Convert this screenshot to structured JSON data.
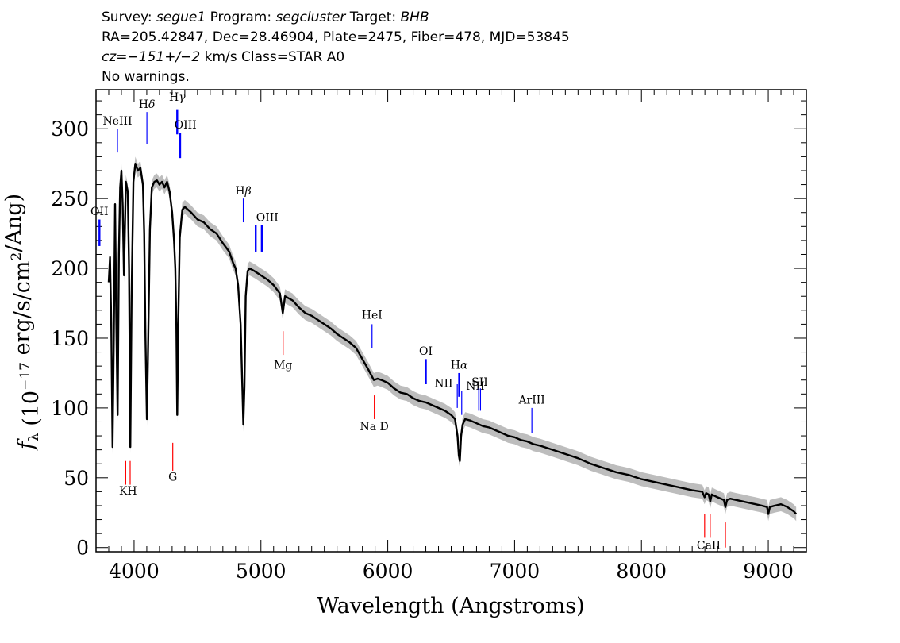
{
  "header": {
    "line1": {
      "survey_label": "Survey: ",
      "survey": "segue1",
      "program_label": " Program: ",
      "program": "segcluster",
      "target_label": " Target: ",
      "target": "BHB"
    },
    "line2": "RA=205.42847, Dec=28.46904, Plate=2475, Fiber=478, MJD=53845",
    "line3": {
      "cz": "cz=−151+/−2",
      "rest": " km/s Class=STAR A0"
    },
    "line4": "No warnings."
  },
  "chart_data": {
    "type": "line",
    "xlabel": "Wavelength (Angstroms)",
    "ylabel": "f_λ (10^-17 erg/s/cm^2/Ang)",
    "xlim": [
      3700,
      9300
    ],
    "ylim": [
      -3,
      328
    ],
    "xticks": [
      4000,
      5000,
      6000,
      7000,
      8000,
      9000
    ],
    "yticks": [
      0,
      50,
      100,
      150,
      200,
      250,
      300
    ],
    "series": [
      {
        "color": "#000000",
        "points": [
          [
            3800,
            190
          ],
          [
            3810,
            208
          ],
          [
            3820,
            160
          ],
          [
            3830,
            72
          ],
          [
            3840,
            150
          ],
          [
            3850,
            246
          ],
          [
            3860,
            160
          ],
          [
            3870,
            95
          ],
          [
            3880,
            210
          ],
          [
            3890,
            258
          ],
          [
            3900,
            270
          ],
          [
            3910,
            245
          ],
          [
            3920,
            195
          ],
          [
            3935,
            262
          ],
          [
            3950,
            255
          ],
          [
            3960,
            200
          ],
          [
            3970,
            72
          ],
          [
            3980,
            180
          ],
          [
            3995,
            262
          ],
          [
            4010,
            275
          ],
          [
            4030,
            270
          ],
          [
            4050,
            272
          ],
          [
            4070,
            260
          ],
          [
            4080,
            225
          ],
          [
            4090,
            150
          ],
          [
            4101,
            92
          ],
          [
            4112,
            150
          ],
          [
            4125,
            228
          ],
          [
            4140,
            258
          ],
          [
            4160,
            262
          ],
          [
            4180,
            263
          ],
          [
            4200,
            260
          ],
          [
            4220,
            262
          ],
          [
            4240,
            258
          ],
          [
            4260,
            262
          ],
          [
            4280,
            255
          ],
          [
            4300,
            240
          ],
          [
            4315,
            220
          ],
          [
            4325,
            200
          ],
          [
            4333,
            160
          ],
          [
            4340,
            95
          ],
          [
            4348,
            160
          ],
          [
            4360,
            222
          ],
          [
            4380,
            242
          ],
          [
            4400,
            244
          ],
          [
            4450,
            240
          ],
          [
            4500,
            235
          ],
          [
            4550,
            233
          ],
          [
            4600,
            228
          ],
          [
            4650,
            225
          ],
          [
            4700,
            218
          ],
          [
            4750,
            212
          ],
          [
            4780,
            204
          ],
          [
            4800,
            200
          ],
          [
            4820,
            188
          ],
          [
            4840,
            160
          ],
          [
            4855,
            110
          ],
          [
            4861,
            88
          ],
          [
            4870,
            115
          ],
          [
            4880,
            180
          ],
          [
            4895,
            198
          ],
          [
            4910,
            200
          ],
          [
            4950,
            198
          ],
          [
            5000,
            195
          ],
          [
            5050,
            192
          ],
          [
            5100,
            188
          ],
          [
            5150,
            182
          ],
          [
            5172,
            168
          ],
          [
            5190,
            180
          ],
          [
            5250,
            177
          ],
          [
            5300,
            172
          ],
          [
            5350,
            168
          ],
          [
            5400,
            166
          ],
          [
            5450,
            163
          ],
          [
            5500,
            160
          ],
          [
            5550,
            157
          ],
          [
            5600,
            153
          ],
          [
            5650,
            150
          ],
          [
            5700,
            147
          ],
          [
            5750,
            143
          ],
          [
            5800,
            135
          ],
          [
            5850,
            127
          ],
          [
            5890,
            120
          ],
          [
            5920,
            121
          ],
          [
            5950,
            120
          ],
          [
            6000,
            118
          ],
          [
            6050,
            114
          ],
          [
            6100,
            111
          ],
          [
            6150,
            110
          ],
          [
            6200,
            107
          ],
          [
            6250,
            105
          ],
          [
            6300,
            104
          ],
          [
            6350,
            102
          ],
          [
            6400,
            100
          ],
          [
            6450,
            98
          ],
          [
            6500,
            95
          ],
          [
            6530,
            92
          ],
          [
            6550,
            80
          ],
          [
            6560,
            66
          ],
          [
            6568,
            62
          ],
          [
            6578,
            80
          ],
          [
            6590,
            88
          ],
          [
            6610,
            92
          ],
          [
            6650,
            91
          ],
          [
            6700,
            89
          ],
          [
            6750,
            87
          ],
          [
            6800,
            86
          ],
          [
            6850,
            84
          ],
          [
            6900,
            82
          ],
          [
            6950,
            80
          ],
          [
            7000,
            79
          ],
          [
            7050,
            77
          ],
          [
            7100,
            76
          ],
          [
            7150,
            74
          ],
          [
            7200,
            73
          ],
          [
            7300,
            70
          ],
          [
            7400,
            67
          ],
          [
            7500,
            64
          ],
          [
            7600,
            60
          ],
          [
            7700,
            57
          ],
          [
            7800,
            54
          ],
          [
            7900,
            52
          ],
          [
            8000,
            49
          ],
          [
            8100,
            47
          ],
          [
            8200,
            45
          ],
          [
            8300,
            43
          ],
          [
            8400,
            41
          ],
          [
            8480,
            40
          ],
          [
            8498,
            36
          ],
          [
            8510,
            39
          ],
          [
            8530,
            38
          ],
          [
            8542,
            33
          ],
          [
            8555,
            38
          ],
          [
            8600,
            36
          ],
          [
            8650,
            34
          ],
          [
            8662,
            29
          ],
          [
            8675,
            34
          ],
          [
            8700,
            35
          ],
          [
            8750,
            34
          ],
          [
            8800,
            33
          ],
          [
            8850,
            32
          ],
          [
            8900,
            31
          ],
          [
            8950,
            30
          ],
          [
            8990,
            29
          ],
          [
            9000,
            24
          ],
          [
            9012,
            29
          ],
          [
            9050,
            30
          ],
          [
            9100,
            31
          ],
          [
            9150,
            29
          ],
          [
            9200,
            26
          ],
          [
            9220,
            24
          ]
        ]
      }
    ],
    "lines": [
      {
        "label": "NeIII",
        "x": 3869,
        "y0": 283,
        "y1": 300,
        "color": "#0000ff",
        "kind": "emission",
        "lx": 3869,
        "ly": 303,
        "lw": false
      },
      {
        "label": "Hδ",
        "x": 4101,
        "y0": 289,
        "y1": 312,
        "color": "#0000ff",
        "kind": "emission",
        "lx": 4101,
        "ly": 315,
        "lw": false
      },
      {
        "label": "Hγ",
        "x": 4340,
        "y0": 296,
        "y1": 314,
        "color": "#0000ff",
        "kind": "emission",
        "lx": 4340,
        "ly": 320,
        "lw": true
      },
      {
        "label": "OIII",
        "x": 4363,
        "y0": 279,
        "y1": 297,
        "color": "#0000ff",
        "kind": "emission",
        "lx": 4405,
        "ly": 300,
        "lw": true
      },
      {
        "label": "OII",
        "x": 3727,
        "y0": 216,
        "y1": 235,
        "color": "#0000ff",
        "kind": "emission",
        "lx": 3727,
        "ly": 238,
        "lw": true
      },
      {
        "label": "Hβ",
        "x": 4861,
        "y0": 233,
        "y1": 250,
        "color": "#0000ff",
        "kind": "emission",
        "lx": 4861,
        "ly": 253,
        "lw": false
      },
      {
        "label": "OIII",
        "x": 4959,
        "y0": 212,
        "y1": 231,
        "color": "#0000ff",
        "kind": "emission",
        "lx": 5050,
        "ly": 234,
        "lw": true
      },
      {
        "label": "",
        "x": 5007,
        "y0": 212,
        "y1": 231,
        "color": "#0000ff",
        "kind": "emission",
        "lx": 0,
        "ly": 0,
        "lw": true
      },
      {
        "label": "HeI",
        "x": 5876,
        "y0": 143,
        "y1": 160,
        "color": "#0000ff",
        "kind": "emission",
        "lx": 5876,
        "ly": 164,
        "lw": false
      },
      {
        "label": "OI",
        "x": 6300,
        "y0": 117,
        "y1": 135,
        "color": "#0000ff",
        "kind": "emission",
        "lx": 6300,
        "ly": 138,
        "lw": true
      },
      {
        "label": "NII",
        "x": 6548,
        "y0": 100,
        "y1": 117,
        "color": "#0000ff",
        "kind": "emission",
        "lx": 6440,
        "ly": 115,
        "lw": false
      },
      {
        "label": "Hα",
        "x": 6563,
        "y0": 108,
        "y1": 125,
        "color": "#0000ff",
        "kind": "emission",
        "lx": 6563,
        "ly": 128,
        "lw": true
      },
      {
        "label": "",
        "x": 6583,
        "y0": 95,
        "y1": 112,
        "color": "#0000ff",
        "kind": "emission",
        "lx": 0,
        "ly": 0,
        "lw": false
      },
      {
        "label": "NII",
        "x": 6690,
        "y0": 0,
        "y1": 0,
        "color": "#0000ff",
        "kind": "label-only",
        "lx": 6690,
        "ly": 113,
        "lw": false
      },
      {
        "label": "SII",
        "x": 6717,
        "y0": 98,
        "y1": 114,
        "color": "#0000ff",
        "kind": "emission",
        "lx": 6725,
        "ly": 116,
        "lw": false
      },
      {
        "label": "",
        "x": 6731,
        "y0": 98,
        "y1": 114,
        "color": "#0000ff",
        "kind": "emission",
        "lx": 0,
        "ly": 0,
        "lw": false
      },
      {
        "label": "ArIII",
        "x": 7136,
        "y0": 82,
        "y1": 100,
        "color": "#0000ff",
        "kind": "emission",
        "lx": 7136,
        "ly": 103,
        "lw": false
      },
      {
        "label": "KH",
        "x": 3934,
        "y0": 45,
        "y1": 62,
        "color": "#ff0000",
        "kind": "absorption",
        "lx": 3952,
        "ly": 38,
        "lw": false
      },
      {
        "label": "",
        "x": 3969,
        "y0": 45,
        "y1": 62,
        "color": "#ff0000",
        "kind": "absorption",
        "lx": 0,
        "ly": 0,
        "lw": false
      },
      {
        "label": "G",
        "x": 4305,
        "y0": 55,
        "y1": 75,
        "color": "#ff0000",
        "kind": "absorption",
        "lx": 4305,
        "ly": 48,
        "lw": false
      },
      {
        "label": "Mg",
        "x": 5175,
        "y0": 138,
        "y1": 155,
        "color": "#ff0000",
        "kind": "absorption",
        "lx": 5175,
        "ly": 128,
        "lw": false
      },
      {
        "label": "Na D",
        "x": 5894,
        "y0": 92,
        "y1": 109,
        "color": "#ff0000",
        "kind": "absorption",
        "lx": 5894,
        "ly": 84,
        "lw": false
      },
      {
        "label": "CaII",
        "x": 8498,
        "y0": 7,
        "y1": 24,
        "color": "#ff0000",
        "kind": "absorption",
        "lx": 8530,
        "ly": -1,
        "lw": false
      },
      {
        "label": "",
        "x": 8542,
        "y0": 7,
        "y1": 24,
        "color": "#ff0000",
        "kind": "absorption",
        "lx": 0,
        "ly": 0,
        "lw": false
      },
      {
        "label": "",
        "x": 8662,
        "y0": 0,
        "y1": 18,
        "color": "#ff0000",
        "kind": "absorption",
        "lx": 0,
        "ly": 0,
        "lw": false
      }
    ]
  }
}
